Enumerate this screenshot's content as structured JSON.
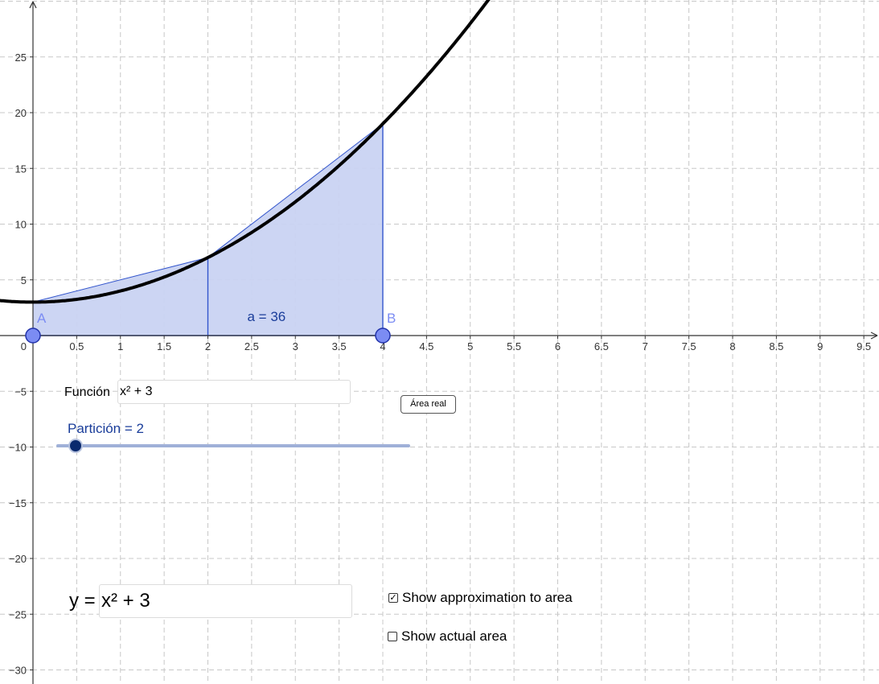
{
  "graph": {
    "function": "x^2 + 3",
    "x_range": [
      -0.38,
      9.7
    ],
    "y_range": [
      -31,
      30
    ],
    "x_ticks": [
      "0.5",
      "1",
      "1.5",
      "2",
      "2.5",
      "3",
      "3.5",
      "4",
      "4.5",
      "5",
      "5.5",
      "6",
      "6.5",
      "7",
      "7.5",
      "8",
      "8.5",
      "9",
      "9.5"
    ],
    "y_ticks": [
      "25",
      "20",
      "15",
      "10",
      "5",
      "−5",
      "−10",
      "−15",
      "−20",
      "−25",
      "−30"
    ],
    "origin_label": "0",
    "partition_points": [
      0,
      2,
      4
    ],
    "area_label": "a = 36",
    "point_a": {
      "label": "A",
      "x": 0
    },
    "point_b": {
      "label": "B",
      "x": 4
    },
    "colors": {
      "curve": "#000000",
      "fill": "#c9d3f2",
      "edge": "#3355cc",
      "point": "#7b8cf3",
      "axis": "#333333",
      "grid": "#c8c8c8"
    }
  },
  "controls": {
    "function_label": "Función",
    "function_value": "x² + 3",
    "area_button": "Área real",
    "partition_label": "Partición = 2",
    "partition_value": 2,
    "y_label": "y =",
    "y_value": "x² + 3",
    "show_approx_label": "Show approximation to area",
    "show_approx_checked": true,
    "show_actual_label": "Show actual area",
    "show_actual_checked": false
  }
}
